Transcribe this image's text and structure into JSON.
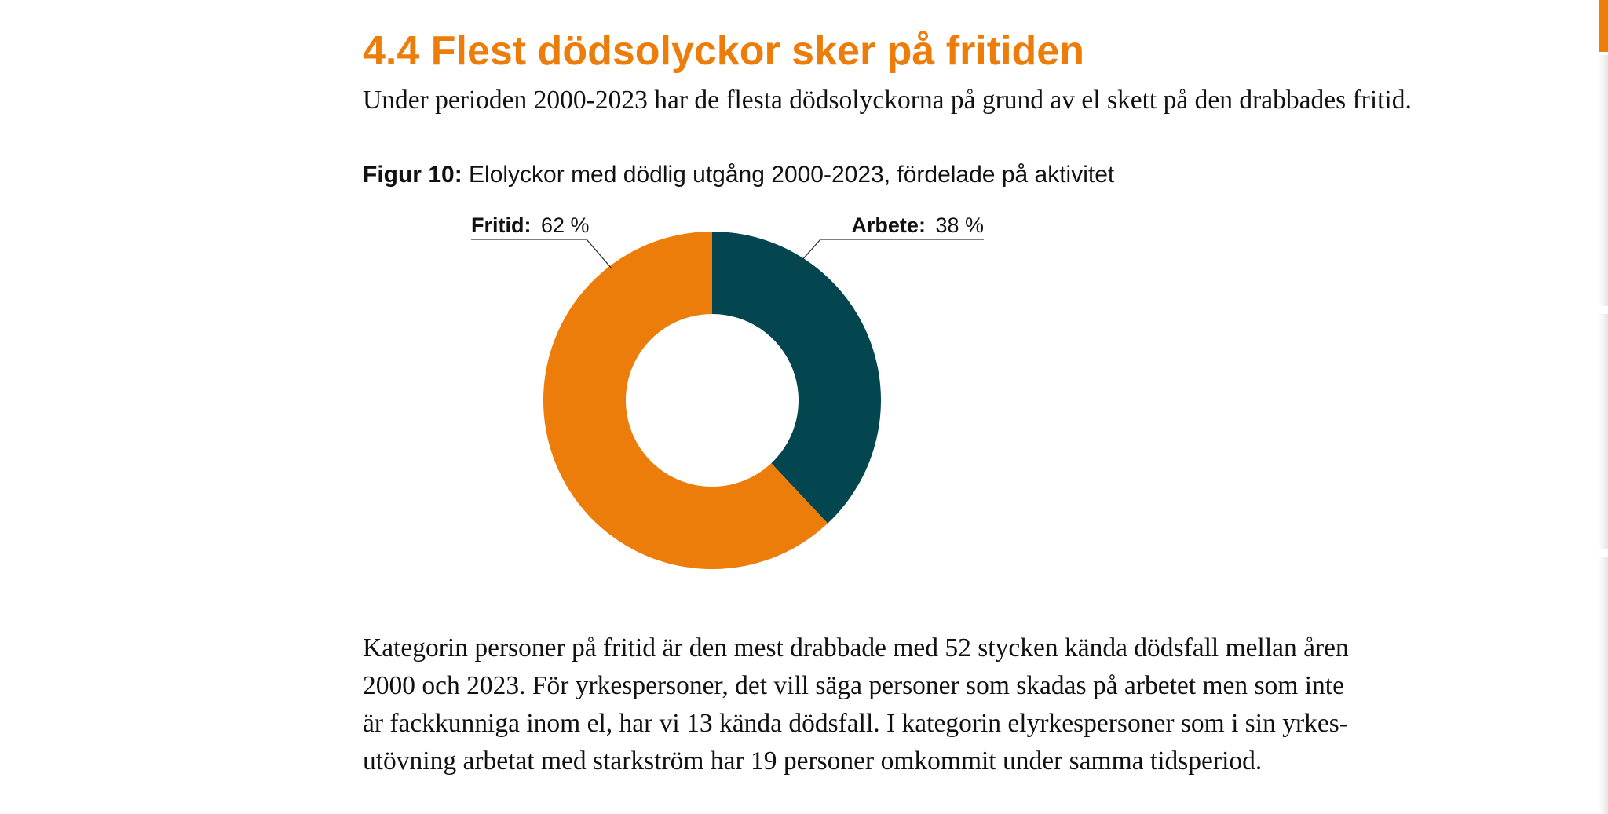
{
  "section": {
    "heading": "4.4 Flest dödsolyckor sker på fritiden",
    "lead": "Under perioden 2000-2023 har de flesta dödsolyckorna på grund av el skett på den drabbades fritid."
  },
  "figure": {
    "label": "Figur 10:",
    "title": "Elolyckor med dödlig utgång 2000-2023, fördelade på aktivitet"
  },
  "colors": {
    "accent": "#EC7D0A",
    "dark": "#044650"
  },
  "chart_data": {
    "type": "pie",
    "donut": true,
    "categories": [
      "Arbete",
      "Fritid"
    ],
    "values": [
      38,
      62
    ],
    "unit": "%",
    "colors": [
      "#044650",
      "#EC7D0A"
    ],
    "labels": [
      {
        "name": "Fritid:",
        "value": "62 %"
      },
      {
        "name": "Arbete:",
        "value": "38 %"
      }
    ]
  },
  "body": {
    "lines": [
      "Kategorin personer på fritid är den mest drabbade med 52 stycken kända dödsfall mellan åren",
      "2000 och 2023. För yrkespersoner, det vill säga personer som skadas på arbetet men som inte",
      "är fackkunniga inom el, har vi 13 kända dödsfall. I kategorin elyrkespersoner som i sin yrkes-",
      "utövning arbetat med starkström har 19 personer omkommit under samma tidsperiod."
    ]
  }
}
